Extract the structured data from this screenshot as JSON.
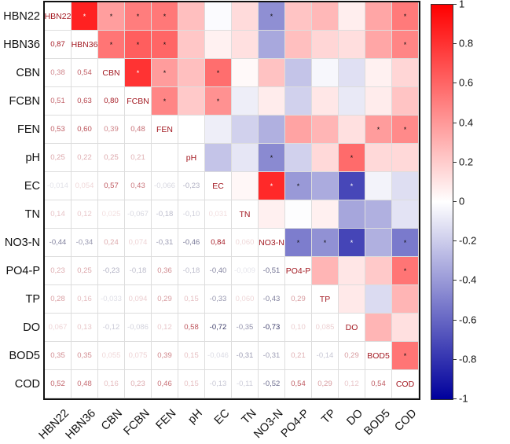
{
  "chart_data": {
    "type": "heatmap",
    "title": "",
    "labels": [
      "HBN22",
      "HBN36",
      "CBN",
      "FCBN",
      "FEN",
      "pH",
      "EC",
      "TN",
      "NO3-N",
      "PO4-P",
      "TP",
      "DO",
      "BOD5",
      "COD"
    ],
    "lower_triangle": [
      [],
      [
        "0,87"
      ],
      [
        "0,38",
        "0,54"
      ],
      [
        "0,51",
        "0,63",
        "0,80"
      ],
      [
        "0,53",
        "0,60",
        "0,39",
        "0,48"
      ],
      [
        "0,25",
        "0,22",
        "0,25",
        "0,21",
        ""
      ],
      [
        "-0,014",
        "0,054",
        "0,57",
        "0,43",
        "-0,066",
        "-0,23"
      ],
      [
        "0,14",
        "0,12",
        "0,025",
        "-0,067",
        "-0,18",
        "-0,10",
        "0,031"
      ],
      [
        "-0,44",
        "-0,34",
        "0,24",
        "0,074",
        "-0,31",
        "-0,46",
        "0,84",
        "0,060"
      ],
      [
        "0,23",
        "0,25",
        "-0,23",
        "-0,18",
        "0,36",
        "-0,18",
        "-0,40",
        "-0,009",
        "-0,51"
      ],
      [
        "0,28",
        "0,16",
        "-0,033",
        "0,094",
        "0,29",
        "0,15",
        "-0,33",
        "0,060",
        "-0,43",
        "0,29"
      ],
      [
        "0,067",
        "0,13",
        "-0,12",
        "-0,086",
        "0,12",
        "0,58",
        "-0,72",
        "-0,35",
        "-0,73",
        "0,10",
        "0,085"
      ],
      [
        "0,35",
        "0,35",
        "0,055",
        "0,075",
        "0,39",
        "0,15",
        "-0,046",
        "-0,31",
        "-0,31",
        "0,21",
        "-0,14",
        "0,29"
      ],
      [
        "0,52",
        "0,48",
        "0,16",
        "0,23",
        "0,46",
        "0,15",
        "-0,13",
        "-0,11",
        "-0,52",
        "0,54",
        "0,29",
        "0,12",
        "0,54"
      ]
    ],
    "significant_pairs": [
      [
        0,
        1
      ],
      [
        0,
        2
      ],
      [
        0,
        3
      ],
      [
        0,
        4
      ],
      [
        0,
        8
      ],
      [
        0,
        13
      ],
      [
        1,
        2
      ],
      [
        1,
        3
      ],
      [
        1,
        4
      ],
      [
        1,
        13
      ],
      [
        2,
        3
      ],
      [
        2,
        4
      ],
      [
        2,
        6
      ],
      [
        3,
        4
      ],
      [
        3,
        6
      ],
      [
        4,
        12
      ],
      [
        4,
        13
      ],
      [
        5,
        8
      ],
      [
        5,
        11
      ],
      [
        6,
        8
      ],
      [
        6,
        9
      ],
      [
        6,
        11
      ],
      [
        8,
        9
      ],
      [
        8,
        10
      ],
      [
        8,
        11
      ],
      [
        8,
        13
      ],
      [
        9,
        13
      ],
      [
        12,
        13
      ]
    ],
    "significance_mark": "*",
    "colorbar": {
      "ticks": [
        "1",
        "0.8",
        "0.6",
        "0.4",
        "0.2",
        "0",
        "-0.2",
        "-0.4",
        "-0.6",
        "-0.8",
        "-1"
      ],
      "range": [
        -1,
        1
      ],
      "colors": {
        "positive": "#ff0000",
        "zero": "#ffffff",
        "negative": "#00009c"
      }
    }
  }
}
